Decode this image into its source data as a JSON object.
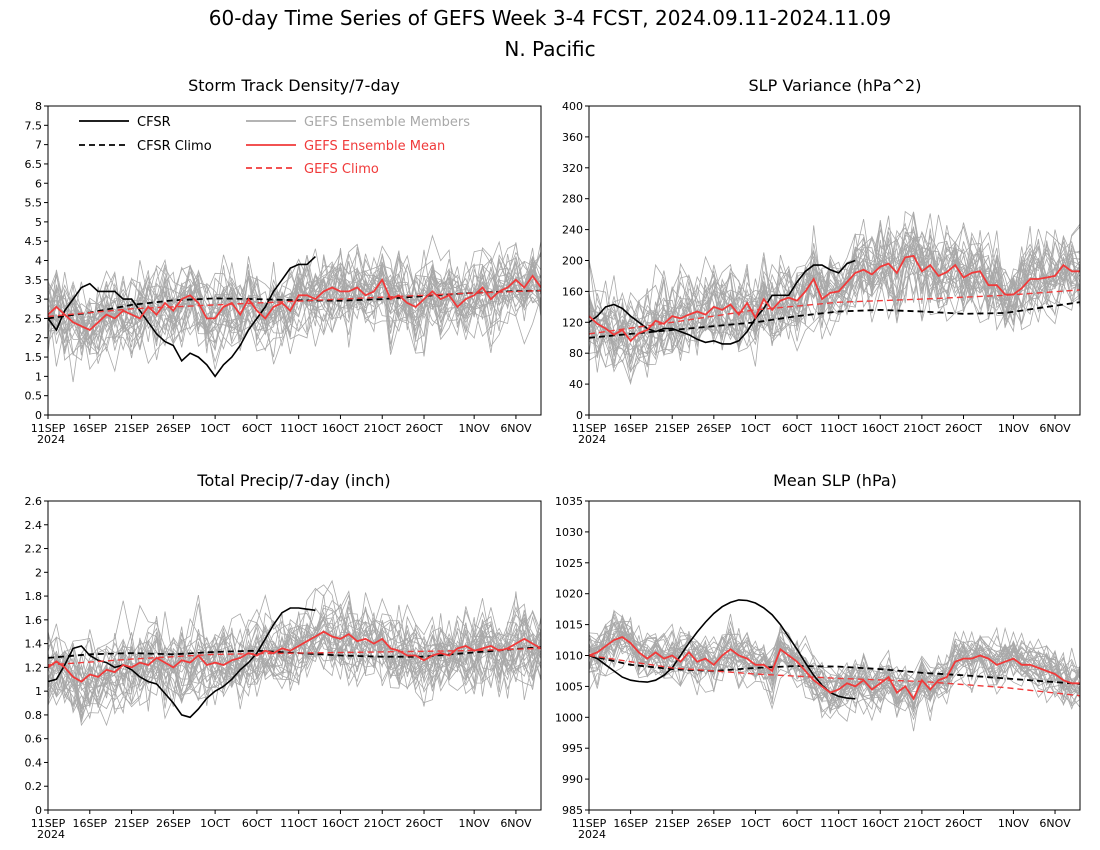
{
  "figure": {
    "title_line1": "60-day Time Series of GEFS Week 3-4 FCST, 2024.09.11-2024.11.09",
    "title_line2": "N. Pacific"
  },
  "legend": {
    "cfsr": "CFSR",
    "cfsr_climo": "CFSR Climo",
    "gefs_members": "GEFS Ensemble Members",
    "gefs_mean": "GEFS Ensemble Mean",
    "gefs_climo": "GEFS Climo"
  },
  "colors": {
    "cfsr": "#000000",
    "gefs_member": "#a9a9a9",
    "gefs_mean": "#f03a3a",
    "gefs_climo": "#f03a3a"
  },
  "x_axis": {
    "labels": [
      "11SEP",
      "16SEP",
      "21SEP",
      "26SEP",
      "1OCT",
      "6OCT",
      "11OCT",
      "16OCT",
      "21OCT",
      "26OCT",
      "1NOV",
      "6NOV"
    ],
    "year_label": "2024"
  },
  "chart_data": [
    {
      "type": "line",
      "title": "Storm Track Density/7-day",
      "ylim": [
        0,
        8
      ],
      "yticks": [
        "0",
        "0.5",
        "1",
        "1.5",
        "2",
        "2.5",
        "3",
        "3.5",
        "4",
        "4.5",
        "5",
        "5.5",
        "6",
        "6.5",
        "7",
        "7.5",
        "8"
      ],
      "series": [
        {
          "name": "CFSR",
          "x": [
            0,
            1,
            2,
            3,
            4,
            5,
            6,
            7,
            8,
            9,
            10,
            11,
            12,
            13,
            14,
            15,
            16,
            17,
            18,
            19,
            20,
            21,
            22,
            23,
            24,
            25,
            26,
            27,
            28,
            29,
            30,
            31,
            32
          ],
          "y": [
            2.5,
            2.2,
            2.7,
            3.0,
            3.3,
            3.4,
            3.2,
            3.2,
            3.2,
            3.0,
            3.0,
            2.7,
            2.4,
            2.1,
            1.9,
            1.8,
            1.4,
            1.6,
            1.5,
            1.3,
            1.0,
            1.3,
            1.5,
            1.8,
            2.2,
            2.5,
            2.8,
            3.2,
            3.5,
            3.8,
            3.9,
            3.9,
            4.1
          ]
        },
        {
          "name": "CFSR Climo",
          "x": [
            0,
            5,
            10,
            15,
            20,
            25,
            30,
            35,
            40,
            45,
            50,
            55,
            59
          ],
          "y": [
            2.5,
            2.65,
            2.85,
            2.97,
            3.02,
            3.0,
            2.97,
            2.96,
            3.0,
            3.08,
            3.15,
            3.2,
            3.22
          ]
        },
        {
          "name": "GEFS Ensemble Mean",
          "x": [
            0,
            1,
            2,
            3,
            4,
            5,
            6,
            7,
            8,
            9,
            10,
            11,
            12,
            13,
            14,
            15,
            16,
            17,
            18,
            19,
            20,
            21,
            22,
            23,
            24,
            25,
            26,
            27,
            28,
            29,
            30,
            31,
            32,
            33,
            34,
            35,
            36,
            37,
            38,
            39,
            40,
            41,
            42,
            43,
            44,
            45,
            46,
            47,
            48,
            49,
            50,
            51,
            52,
            53,
            54,
            55,
            56,
            57,
            58,
            59
          ],
          "y": [
            2.6,
            2.8,
            2.6,
            2.4,
            2.3,
            2.2,
            2.4,
            2.6,
            2.5,
            2.7,
            2.6,
            2.5,
            2.8,
            2.6,
            2.9,
            2.7,
            3.0,
            3.1,
            2.9,
            2.5,
            2.5,
            2.8,
            2.9,
            2.6,
            3.0,
            2.7,
            2.5,
            2.8,
            2.9,
            2.7,
            3.1,
            3.1,
            3.0,
            3.2,
            3.3,
            3.2,
            3.2,
            3.3,
            3.1,
            3.2,
            3.5,
            3.0,
            3.1,
            2.9,
            2.8,
            3.0,
            3.2,
            3.0,
            3.1,
            2.8,
            3.0,
            3.1,
            3.3,
            3.0,
            3.2,
            3.3,
            3.5,
            3.3,
            3.6,
            3.3
          ]
        },
        {
          "name": "GEFS Climo",
          "x": [
            0,
            10,
            20,
            30,
            40,
            50,
            59
          ],
          "y": [
            2.55,
            2.75,
            2.85,
            2.95,
            3.05,
            3.15,
            3.22
          ]
        }
      ]
    },
    {
      "type": "line",
      "title": "SLP Variance (hPa^2)",
      "ylim": [
        0,
        400
      ],
      "yticks": [
        "0",
        "40",
        "80",
        "120",
        "160",
        "200",
        "240",
        "280",
        "320",
        "360",
        "400"
      ],
      "series": [
        {
          "name": "CFSR",
          "x": [
            0,
            1,
            2,
            3,
            4,
            5,
            6,
            7,
            8,
            9,
            10,
            11,
            12,
            13,
            14,
            15,
            16,
            17,
            18,
            19,
            20,
            21,
            22,
            23,
            24,
            25,
            26,
            27,
            28,
            29,
            30,
            31,
            32
          ],
          "y": [
            120,
            128,
            140,
            143,
            138,
            128,
            120,
            112,
            108,
            112,
            112,
            108,
            104,
            98,
            94,
            96,
            92,
            92,
            96,
            108,
            125,
            138,
            155,
            155,
            155,
            172,
            186,
            194,
            194,
            188,
            184,
            196,
            200
          ]
        },
        {
          "name": "CFSR Climo",
          "x": [
            0,
            5,
            10,
            15,
            20,
            25,
            30,
            35,
            40,
            45,
            50,
            55,
            59
          ],
          "y": [
            100,
            105,
            110,
            115,
            120,
            128,
            134,
            136,
            134,
            131,
            132,
            140,
            146
          ]
        },
        {
          "name": "GEFS Ensemble Mean",
          "x": [
            0,
            1,
            2,
            3,
            4,
            5,
            6,
            7,
            8,
            9,
            10,
            11,
            12,
            13,
            14,
            15,
            16,
            17,
            18,
            19,
            20,
            21,
            22,
            23,
            24,
            25,
            26,
            27,
            28,
            29,
            30,
            31,
            32,
            33,
            34,
            35,
            36,
            37,
            38,
            39,
            40,
            41,
            42,
            43,
            44,
            45,
            46,
            47,
            48,
            49,
            50,
            51,
            52,
            53,
            54,
            55,
            56,
            57,
            58,
            59
          ],
          "y": [
            128,
            118,
            112,
            104,
            110,
            96,
            106,
            110,
            122,
            118,
            128,
            125,
            130,
            134,
            130,
            140,
            136,
            143,
            130,
            145,
            126,
            150,
            136,
            148,
            152,
            148,
            160,
            176,
            150,
            158,
            160,
            172,
            184,
            188,
            182,
            192,
            196,
            184,
            204,
            206,
            186,
            194,
            180,
            185,
            194,
            178,
            184,
            186,
            168,
            168,
            156,
            156,
            164,
            176,
            176,
            178,
            180,
            194,
            186,
            186
          ]
        },
        {
          "name": "GEFS Climo",
          "x": [
            0,
            10,
            20,
            30,
            40,
            50,
            59
          ],
          "y": [
            105,
            120,
            136,
            146,
            150,
            155,
            162
          ]
        }
      ]
    },
    {
      "type": "line",
      "title": "Total Precip/7-day (inch)",
      "ylim": [
        0,
        2.6
      ],
      "yticks": [
        "0",
        "0.2",
        "0.4",
        "0.6",
        "0.8",
        "1",
        "1.2",
        "1.4",
        "1.6",
        "1.8",
        "2",
        "2.2",
        "2.4",
        "2.6"
      ],
      "series": [
        {
          "name": "CFSR",
          "x": [
            0,
            1,
            2,
            3,
            4,
            5,
            6,
            7,
            8,
            9,
            10,
            11,
            12,
            13,
            14,
            15,
            16,
            17,
            18,
            19,
            20,
            21,
            22,
            23,
            24,
            25,
            26,
            27,
            28,
            29,
            30,
            31,
            32
          ],
          "y": [
            1.08,
            1.1,
            1.22,
            1.36,
            1.38,
            1.3,
            1.26,
            1.24,
            1.2,
            1.22,
            1.18,
            1.12,
            1.08,
            1.06,
            0.98,
            0.9,
            0.8,
            0.78,
            0.85,
            0.94,
            1.0,
            1.04,
            1.1,
            1.18,
            1.24,
            1.32,
            1.44,
            1.56,
            1.66,
            1.7,
            1.7,
            1.69,
            1.68
          ]
        },
        {
          "name": "CFSR Climo",
          "x": [
            0,
            5,
            10,
            15,
            20,
            25,
            30,
            35,
            40,
            45,
            50,
            55,
            59
          ],
          "y": [
            1.28,
            1.31,
            1.32,
            1.31,
            1.33,
            1.34,
            1.32,
            1.3,
            1.29,
            1.29,
            1.32,
            1.35,
            1.37
          ]
        },
        {
          "name": "GEFS Ensemble Mean",
          "x": [
            0,
            1,
            2,
            3,
            4,
            5,
            6,
            7,
            8,
            9,
            10,
            11,
            12,
            13,
            14,
            15,
            16,
            17,
            18,
            19,
            20,
            21,
            22,
            23,
            24,
            25,
            26,
            27,
            28,
            29,
            30,
            31,
            32,
            33,
            34,
            35,
            36,
            37,
            38,
            39,
            40,
            41,
            42,
            43,
            44,
            45,
            46,
            47,
            48,
            49,
            50,
            51,
            52,
            53,
            54,
            55,
            56,
            57,
            58,
            59
          ],
          "y": [
            1.2,
            1.25,
            1.2,
            1.12,
            1.08,
            1.14,
            1.12,
            1.18,
            1.16,
            1.22,
            1.2,
            1.24,
            1.22,
            1.28,
            1.24,
            1.2,
            1.26,
            1.24,
            1.3,
            1.22,
            1.24,
            1.22,
            1.26,
            1.28,
            1.32,
            1.3,
            1.34,
            1.32,
            1.36,
            1.34,
            1.38,
            1.42,
            1.46,
            1.5,
            1.46,
            1.44,
            1.48,
            1.42,
            1.44,
            1.4,
            1.44,
            1.36,
            1.34,
            1.3,
            1.3,
            1.26,
            1.3,
            1.32,
            1.3,
            1.36,
            1.38,
            1.34,
            1.36,
            1.38,
            1.34,
            1.36,
            1.4,
            1.44,
            1.4,
            1.36
          ]
        },
        {
          "name": "GEFS Climo",
          "x": [
            0,
            10,
            20,
            30,
            40,
            50,
            59
          ],
          "y": [
            1.22,
            1.27,
            1.31,
            1.32,
            1.33,
            1.34,
            1.36
          ]
        }
      ]
    },
    {
      "type": "line",
      "title": "Mean SLP (hPa)",
      "ylim": [
        985,
        1035
      ],
      "yticks": [
        "985",
        "990",
        "995",
        "1000",
        "1005",
        "1010",
        "1015",
        "1020",
        "1025",
        "1030",
        "1035"
      ],
      "series": [
        {
          "name": "CFSR",
          "x": [
            0,
            1,
            2,
            3,
            4,
            5,
            6,
            7,
            8,
            9,
            10,
            11,
            12,
            13,
            14,
            15,
            16,
            17,
            18,
            19,
            20,
            21,
            22,
            23,
            24,
            25,
            26,
            27,
            28,
            29,
            30,
            31,
            32
          ],
          "y": [
            1010,
            1009.5,
            1008.5,
            1007.5,
            1006.5,
            1006,
            1005.8,
            1005.7,
            1006,
            1006.8,
            1008,
            1010,
            1012,
            1013.8,
            1015.4,
            1016.8,
            1017.9,
            1018.6,
            1019,
            1018.9,
            1018.5,
            1017.7,
            1016.6,
            1015,
            1013,
            1011,
            1008.8,
            1006.8,
            1005.2,
            1004,
            1003.4,
            1003.1,
            1003
          ]
        },
        {
          "name": "CFSR Climo",
          "x": [
            0,
            5,
            10,
            15,
            20,
            25,
            30,
            35,
            40,
            45,
            50,
            55,
            59
          ],
          "y": [
            1010,
            1008.5,
            1007.8,
            1007.5,
            1008,
            1008.3,
            1008.2,
            1007.8,
            1007.2,
            1006.8,
            1006.3,
            1005.8,
            1005.4
          ]
        },
        {
          "name": "GEFS Ensemble Mean",
          "x": [
            0,
            1,
            2,
            3,
            4,
            5,
            6,
            7,
            8,
            9,
            10,
            11,
            12,
            13,
            14,
            15,
            16,
            17,
            18,
            19,
            20,
            21,
            22,
            23,
            24,
            25,
            26,
            27,
            28,
            29,
            30,
            31,
            32,
            33,
            34,
            35,
            36,
            37,
            38,
            39,
            40,
            41,
            42,
            43,
            44,
            45,
            46,
            47,
            48,
            49,
            50,
            51,
            52,
            53,
            54,
            55,
            56,
            57,
            58,
            59
          ],
          "y": [
            1010,
            1010.5,
            1011.5,
            1012.5,
            1013,
            1012,
            1010.5,
            1009.5,
            1010.5,
            1009.5,
            1010,
            1009,
            1010.5,
            1009,
            1009.5,
            1008.5,
            1010,
            1011,
            1010,
            1009.5,
            1008.5,
            1008.5,
            1007.5,
            1011,
            1010,
            1009,
            1007.5,
            1006,
            1005,
            1004,
            1004.5,
            1005.5,
            1005,
            1006,
            1004.5,
            1005.5,
            1006.5,
            1004,
            1005,
            1003,
            1006,
            1004.5,
            1006,
            1006.5,
            1009,
            1009.5,
            1009.5,
            1010,
            1009.5,
            1008.5,
            1009,
            1009.5,
            1008.5,
            1008.5,
            1008,
            1007.5,
            1007,
            1006,
            1005.5,
            1005.5
          ]
        },
        {
          "name": "GEFS Climo",
          "x": [
            0,
            10,
            20,
            30,
            40,
            50,
            59
          ],
          "y": [
            1010,
            1008,
            1007,
            1006.3,
            1005.8,
            1004.8,
            1003.5
          ]
        }
      ]
    }
  ]
}
